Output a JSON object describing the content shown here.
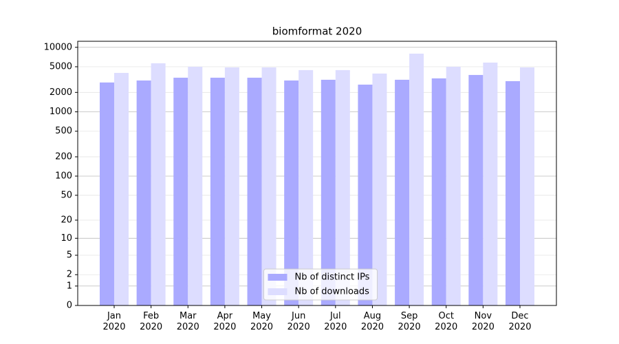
{
  "chart_data": {
    "type": "bar",
    "title": "biomformat 2020",
    "categories": [
      "Jan\n2020",
      "Feb\n2020",
      "Mar\n2020",
      "Apr\n2020",
      "May\n2020",
      "Jun\n2020",
      "Jul\n2020",
      "Aug\n2020",
      "Sep\n2020",
      "Oct\n2020",
      "Nov\n2020",
      "Dec\n2020"
    ],
    "series": [
      {
        "name": "Nb of distinct IPs",
        "color": "#aaaaff",
        "values": [
          2850,
          3060,
          3380,
          3380,
          3380,
          3060,
          3140,
          2640,
          3140,
          3300,
          3730,
          2990
        ]
      },
      {
        "name": "Nb of downloads",
        "color": "#ddddff",
        "values": [
          4010,
          5660,
          5000,
          4880,
          4880,
          4430,
          4430,
          3920,
          7980,
          5000,
          5800,
          4880
        ]
      }
    ],
    "yscale": "log1p",
    "ylim": [
      0,
      12400
    ],
    "yticks": [
      0,
      1,
      2,
      5,
      10,
      20,
      50,
      100,
      200,
      500,
      1000,
      2000,
      5000,
      10000
    ],
    "grid": true,
    "legend": "lower center"
  }
}
